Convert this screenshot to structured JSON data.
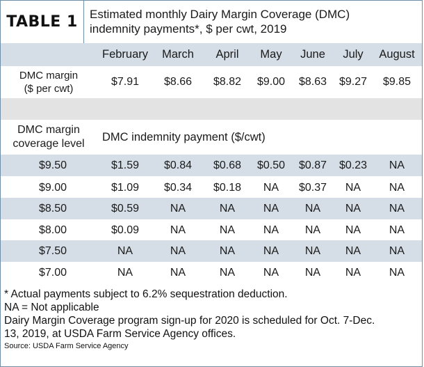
{
  "header": {
    "table_label": "TABLE 1",
    "caption_line1": "Estimated monthly Dairy Margin Coverage (DMC)",
    "caption_line2": "indemnity payments*, $ per cwt, 2019"
  },
  "months": [
    "February",
    "March",
    "April",
    "May",
    "June",
    "July",
    "August"
  ],
  "margin_row": {
    "label_line1": "DMC margin",
    "label_line2": "($ per cwt)",
    "values": [
      "$7.91",
      "$8.66",
      "$8.82",
      "$9.00",
      "$8.63",
      "$9.27",
      "$9.85"
    ]
  },
  "indemnity_section": {
    "left_label_line1": "DMC margin",
    "left_label_line2": "coverage level",
    "heading": "DMC indemnity payment ($/cwt)"
  },
  "coverage_rows": [
    {
      "level": "$9.50",
      "values": [
        "$1.59",
        "$0.84",
        "$0.68",
        "$0.50",
        "$0.87",
        "$0.23",
        "NA"
      ]
    },
    {
      "level": "$9.00",
      "values": [
        "$1.09",
        "$0.34",
        "$0.18",
        "NA",
        "$0.37",
        "NA",
        "NA"
      ]
    },
    {
      "level": "$8.50",
      "values": [
        "$0.59",
        "NA",
        "NA",
        "NA",
        "NA",
        "NA",
        "NA"
      ]
    },
    {
      "level": "$8.00",
      "values": [
        "$0.09",
        "NA",
        "NA",
        "NA",
        "NA",
        "NA",
        "NA"
      ]
    },
    {
      "level": "$7.50",
      "values": [
        "NA",
        "NA",
        "NA",
        "NA",
        "NA",
        "NA",
        "NA"
      ]
    },
    {
      "level": "$7.00",
      "values": [
        "NA",
        "NA",
        "NA",
        "NA",
        "NA",
        "NA",
        "NA"
      ]
    }
  ],
  "footnotes": {
    "asterisk_note": "* Actual payments subject to 6.2% sequestration deduction.",
    "na_note": "NA = Not applicable",
    "signup_line1": "Dairy Margin Coverage program sign-up for 2020 is scheduled for Oct. 7-Dec.",
    "signup_line2": "13, 2019, at USDA Farm Service Agency offices.",
    "source": "Source: USDA Farm Service Agency"
  },
  "colors": {
    "row_shade": "#d5dee7",
    "gap_row": "#e3e3e3",
    "border": "#6f8fa8"
  }
}
